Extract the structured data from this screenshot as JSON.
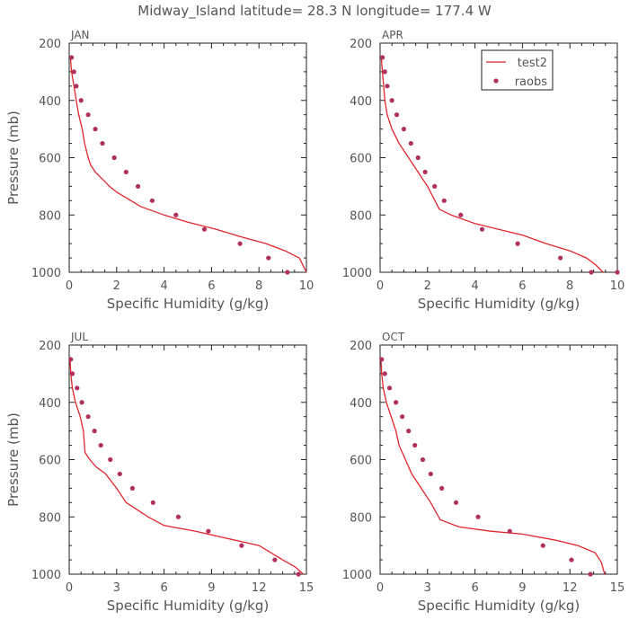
{
  "figure": {
    "title": "Midway_Island  latitude= 28.3 N longitude= 177.4 W"
  },
  "colors": {
    "model_line": "#e0262b",
    "obs_marker": "#b03060",
    "axis": "#222222",
    "text": "#555555"
  },
  "legend": {
    "items": [
      {
        "label": "test2",
        "kind": "line"
      },
      {
        "label": "raobs",
        "kind": "marker"
      }
    ]
  },
  "chart_data": [
    {
      "type": "line",
      "panel": "JAN",
      "title": "JAN",
      "xlabel": "Specific Humidity (g/kg)",
      "ylabel": "Pressure (mb)",
      "xlim": [
        0,
        10
      ],
      "ylim": [
        1000,
        200
      ],
      "xticks": [
        0,
        2,
        4,
        6,
        8,
        10
      ],
      "yticks": [
        200,
        400,
        600,
        800,
        1000
      ],
      "series": [
        {
          "name": "test2",
          "kind": "line",
          "x": [
            0.05,
            0.1,
            0.2,
            0.3,
            0.4,
            0.55,
            0.65,
            0.8,
            0.9,
            1.1,
            1.4,
            1.7,
            2.0,
            2.4,
            3.0,
            4.0,
            5.0,
            6.2,
            7.2,
            8.3,
            9.1,
            9.7,
            10.0
          ],
          "y": [
            250,
            300,
            350,
            400,
            450,
            500,
            550,
            600,
            625,
            650,
            675,
            700,
            720,
            740,
            770,
            800,
            825,
            850,
            875,
            900,
            925,
            950,
            1000
          ]
        },
        {
          "name": "raobs",
          "kind": "marker",
          "x": [
            0.1,
            0.2,
            0.3,
            0.5,
            0.8,
            1.1,
            1.4,
            1.9,
            2.4,
            2.9,
            3.5,
            4.5,
            5.7,
            7.2,
            8.4,
            9.2
          ],
          "y": [
            250,
            300,
            350,
            400,
            450,
            500,
            550,
            600,
            650,
            700,
            750,
            800,
            850,
            900,
            950,
            1000
          ]
        }
      ]
    },
    {
      "type": "line",
      "panel": "APR",
      "title": "APR",
      "xlabel": "Specific Humidity (g/kg)",
      "ylabel": "",
      "xlim": [
        0,
        10
      ],
      "ylim": [
        1000,
        200
      ],
      "xticks": [
        0,
        2,
        4,
        6,
        8,
        10
      ],
      "yticks": [
        200,
        400,
        600,
        800,
        1000
      ],
      "series": [
        {
          "name": "test2",
          "kind": "line",
          "x": [
            0.05,
            0.1,
            0.15,
            0.2,
            0.3,
            0.5,
            0.8,
            1.2,
            1.6,
            2.0,
            2.5,
            3.0,
            4.0,
            5.0,
            6.0,
            7.0,
            8.0,
            8.7,
            9.1,
            9.4
          ],
          "y": [
            250,
            300,
            350,
            400,
            450,
            500,
            550,
            600,
            650,
            700,
            780,
            800,
            830,
            850,
            870,
            900,
            925,
            950,
            975,
            1000
          ]
        },
        {
          "name": "raobs",
          "kind": "marker",
          "x": [
            0.1,
            0.2,
            0.3,
            0.5,
            0.7,
            1.0,
            1.3,
            1.6,
            1.9,
            2.3,
            2.7,
            3.4,
            4.3,
            5.8,
            7.6,
            8.9,
            10.0
          ],
          "y": [
            250,
            300,
            350,
            400,
            450,
            500,
            550,
            600,
            650,
            700,
            750,
            800,
            850,
            900,
            950,
            1000,
            1000
          ]
        }
      ]
    },
    {
      "type": "line",
      "panel": "JUL",
      "title": "JUL",
      "xlabel": "Specific Humidity (g/kg)",
      "ylabel": "Pressure (mb)",
      "xlim": [
        0,
        15
      ],
      "ylim": [
        1000,
        200
      ],
      "xticks": [
        0,
        3,
        6,
        9,
        12,
        15
      ],
      "yticks": [
        200,
        400,
        600,
        800,
        1000
      ],
      "series": [
        {
          "name": "test2",
          "kind": "line",
          "x": [
            0.05,
            0.1,
            0.2,
            0.4,
            0.7,
            0.9,
            1.0,
            1.3,
            1.7,
            2.3,
            3.0,
            3.6,
            4.3,
            5.0,
            6.0,
            8.0,
            10.0,
            12.0,
            13.5,
            14.3,
            14.8
          ],
          "y": [
            250,
            300,
            350,
            400,
            450,
            500,
            575,
            600,
            625,
            650,
            700,
            750,
            775,
            800,
            830,
            850,
            875,
            900,
            950,
            975,
            1000
          ]
        },
        {
          "name": "raobs",
          "kind": "marker",
          "x": [
            0.1,
            0.2,
            0.5,
            0.8,
            1.2,
            1.6,
            2.0,
            2.6,
            3.2,
            4.0,
            5.3,
            6.9,
            8.8,
            10.9,
            13.0,
            14.5
          ],
          "y": [
            250,
            300,
            350,
            400,
            450,
            500,
            550,
            600,
            650,
            700,
            750,
            800,
            850,
            900,
            950,
            1000
          ]
        }
      ]
    },
    {
      "type": "line",
      "panel": "OCT",
      "title": "OCT",
      "xlabel": "Specific Humidity (g/kg)",
      "ylabel": "",
      "xlim": [
        0,
        15
      ],
      "ylim": [
        1000,
        200
      ],
      "xticks": [
        0,
        3,
        6,
        9,
        12,
        15
      ],
      "yticks": [
        200,
        400,
        600,
        800,
        1000
      ],
      "series": [
        {
          "name": "test2",
          "kind": "line",
          "x": [
            0.05,
            0.1,
            0.2,
            0.4,
            0.7,
            1.0,
            1.2,
            1.6,
            2.0,
            2.6,
            3.2,
            3.8,
            5.0,
            7.0,
            9.0,
            11.0,
            12.5,
            13.6,
            14.0,
            14.2
          ],
          "y": [
            250,
            300,
            350,
            400,
            450,
            500,
            550,
            600,
            650,
            700,
            750,
            810,
            835,
            850,
            860,
            880,
            900,
            925,
            960,
            1000
          ]
        },
        {
          "name": "raobs",
          "kind": "marker",
          "x": [
            0.1,
            0.3,
            0.6,
            1.0,
            1.4,
            1.8,
            2.2,
            2.7,
            3.2,
            3.9,
            4.8,
            6.2,
            8.2,
            10.3,
            12.1,
            13.3
          ],
          "y": [
            250,
            300,
            350,
            400,
            450,
            500,
            550,
            600,
            650,
            700,
            750,
            800,
            850,
            900,
            950,
            1000
          ]
        }
      ]
    }
  ]
}
